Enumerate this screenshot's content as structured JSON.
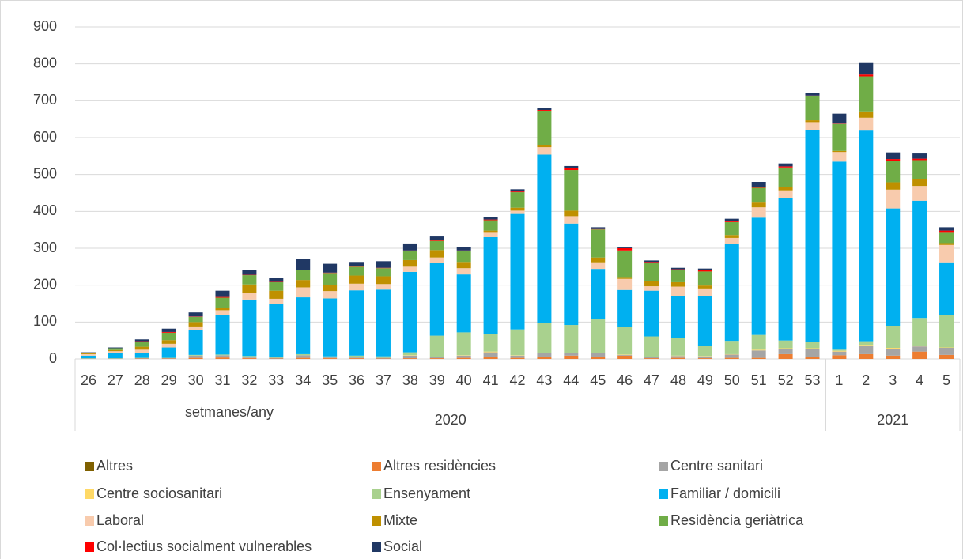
{
  "chart_data": {
    "type": "stacked_bar",
    "x_label": "setmanes/any",
    "groups": [
      "2020",
      "2021"
    ],
    "categories": [
      "26",
      "27",
      "28",
      "29",
      "30",
      "31",
      "32",
      "33",
      "34",
      "35",
      "36",
      "37",
      "38",
      "39",
      "40",
      "41",
      "42",
      "43",
      "44",
      "45",
      "46",
      "47",
      "48",
      "49",
      "50",
      "51",
      "52",
      "53",
      "1",
      "2",
      "3",
      "4",
      "5"
    ],
    "ylim": [
      0,
      900
    ],
    "yticks": [
      0,
      100,
      200,
      300,
      400,
      500,
      600,
      700,
      800,
      900
    ],
    "grid": true,
    "legend": "bottom",
    "series": [
      {
        "name": "Altres",
        "color": "#7f6000",
        "values": [
          0,
          0,
          0,
          0,
          0,
          0,
          0,
          0,
          0,
          0,
          0,
          0,
          0,
          0,
          0,
          0,
          0,
          0,
          0,
          0,
          0,
          0,
          0,
          0,
          0,
          0,
          0,
          0,
          0,
          0,
          0,
          0,
          0
        ]
      },
      {
        "name": "Altres residències",
        "color": "#ed7d31",
        "values": [
          0,
          0,
          1,
          1,
          3,
          4,
          2,
          1,
          3,
          2,
          2,
          1,
          2,
          2,
          3,
          6,
          3,
          5,
          9,
          6,
          9,
          2,
          3,
          2,
          3,
          3,
          13,
          5,
          10,
          13,
          9,
          20,
          11
        ]
      },
      {
        "name": "Centre sanitari",
        "color": "#a5a5a5",
        "values": [
          1,
          1,
          1,
          1,
          6,
          6,
          2,
          2,
          7,
          2,
          2,
          2,
          7,
          3,
          6,
          12,
          6,
          10,
          6,
          9,
          2,
          3,
          5,
          5,
          9,
          20,
          14,
          22,
          10,
          22,
          19,
          14,
          19
        ]
      },
      {
        "name": "Centre sociosanitari",
        "color": "#ffd966",
        "values": [
          0,
          0,
          0,
          0,
          0,
          0,
          1,
          0,
          0,
          0,
          0,
          0,
          1,
          1,
          1,
          2,
          1,
          2,
          1,
          2,
          1,
          1,
          1,
          1,
          1,
          2,
          2,
          2,
          2,
          3,
          2,
          2,
          1
        ]
      },
      {
        "name": "Ensenyament",
        "color": "#a9d18e",
        "values": [
          1,
          1,
          1,
          1,
          2,
          2,
          3,
          2,
          3,
          3,
          5,
          4,
          8,
          57,
          62,
          47,
          70,
          80,
          76,
          90,
          75,
          55,
          47,
          28,
          36,
          40,
          21,
          16,
          3,
          10,
          60,
          75,
          88
        ]
      },
      {
        "name": "Familiar / domicili",
        "color": "#00b0f0",
        "values": [
          7,
          13,
          14,
          28,
          67,
          108,
          153,
          143,
          154,
          157,
          177,
          181,
          218,
          198,
          157,
          263,
          313,
          457,
          275,
          137,
          100,
          124,
          115,
          135,
          262,
          318,
          386,
          575,
          510,
          571,
          318,
          318,
          143
        ]
      },
      {
        "name": "Laboral",
        "color": "#f8cbad",
        "values": [
          4,
          6,
          8,
          10,
          10,
          12,
          17,
          15,
          27,
          20,
          18,
          15,
          14,
          14,
          17,
          12,
          9,
          20,
          20,
          18,
          30,
          12,
          25,
          20,
          17,
          28,
          21,
          22,
          26,
          35,
          51,
          40,
          47
        ]
      },
      {
        "name": "Mixte",
        "color": "#bf9000",
        "values": [
          2,
          3,
          8,
          10,
          12,
          6,
          24,
          22,
          20,
          17,
          22,
          21,
          18,
          20,
          17,
          6,
          8,
          6,
          15,
          13,
          5,
          15,
          12,
          8,
          8,
          13,
          10,
          5,
          3,
          15,
          20,
          18,
          5
        ]
      },
      {
        "name": "Residència geriàtrica",
        "color": "#70ad47",
        "values": [
          2,
          5,
          14,
          20,
          14,
          28,
          25,
          23,
          26,
          32,
          24,
          22,
          24,
          25,
          30,
          28,
          42,
          93,
          110,
          76,
          72,
          48,
          33,
          38,
          35,
          40,
          52,
          65,
          73,
          97,
          58,
          52,
          28
        ]
      },
      {
        "name": "Col·lectius socialment vulnerables",
        "color": "#ff0000",
        "values": [
          0,
          0,
          1,
          2,
          1,
          2,
          1,
          1,
          2,
          1,
          1,
          1,
          2,
          2,
          1,
          2,
          2,
          2,
          6,
          3,
          6,
          3,
          2,
          3,
          2,
          3,
          3,
          2,
          1,
          5,
          5,
          4,
          6
        ]
      },
      {
        "name": "Social",
        "color": "#203864",
        "values": [
          1,
          2,
          5,
          9,
          11,
          17,
          12,
          11,
          28,
          24,
          12,
          18,
          19,
          10,
          10,
          7,
          6,
          5,
          5,
          3,
          2,
          4,
          4,
          5,
          7,
          13,
          8,
          6,
          27,
          31,
          18,
          14,
          9
        ]
      }
    ]
  }
}
